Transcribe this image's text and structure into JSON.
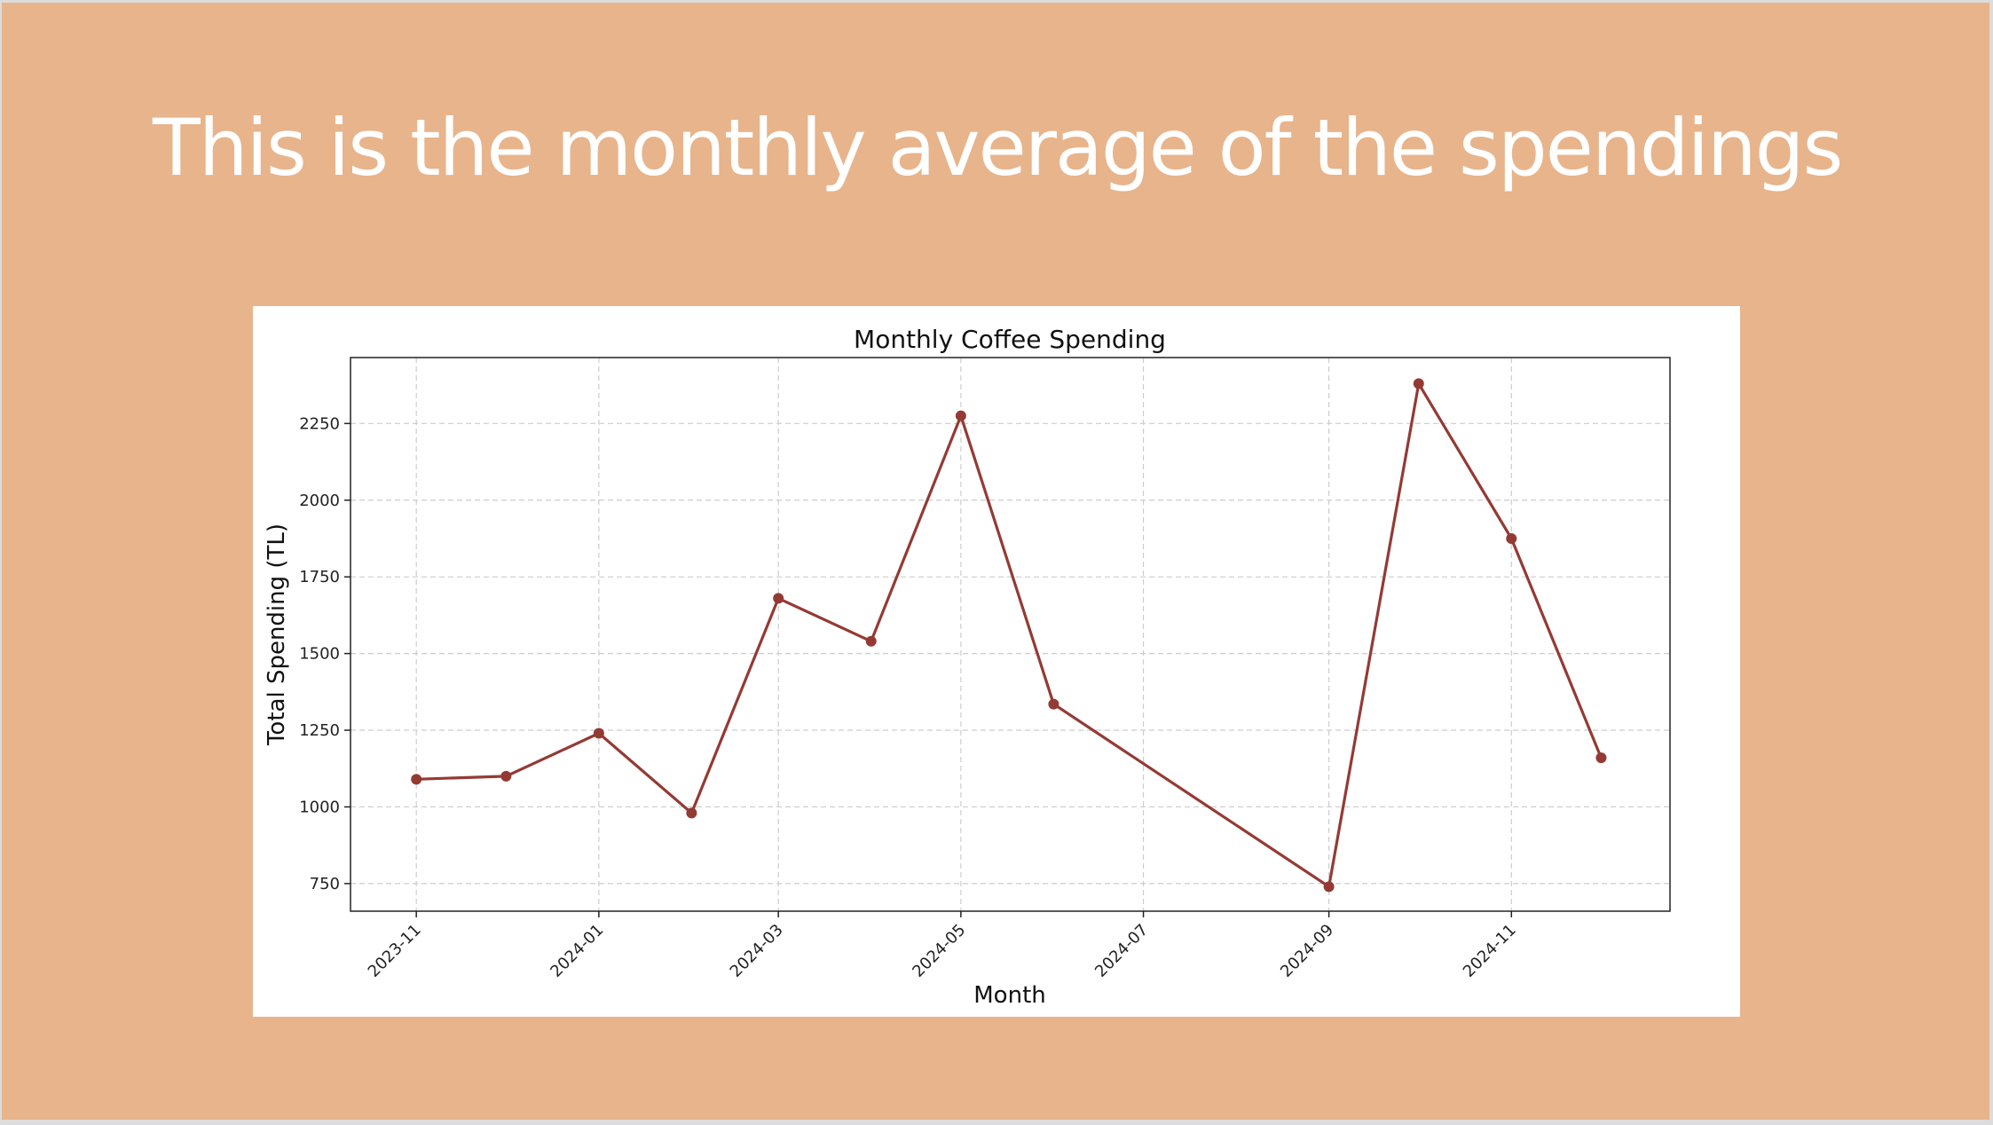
{
  "slide": {
    "title": "This is the monthly average of the spendings",
    "background": "#e8b48b",
    "title_color": "#ffffff"
  },
  "chart_data": {
    "type": "line",
    "title": "Monthly Coffee Spending",
    "xlabel": "Month",
    "ylabel": "Total Spending (TL)",
    "x_tick_labels": [
      "2023-11",
      "2024-01",
      "2024-03",
      "2024-05",
      "2024-07",
      "2024-09",
      "2024-11"
    ],
    "y_ticks": [
      750,
      1000,
      1250,
      1500,
      1750,
      2000,
      2250
    ],
    "xlim": [
      "2023-10-10",
      "2024-12-24"
    ],
    "ylim": [
      660,
      2465
    ],
    "grid": true,
    "series": [
      {
        "color": "#943a34",
        "marker": "circle",
        "points": [
          {
            "x": "2023-11",
            "y": 1090
          },
          {
            "x": "2023-12",
            "y": 1100
          },
          {
            "x": "2024-01",
            "y": 1240
          },
          {
            "x": "2024-02",
            "y": 980
          },
          {
            "x": "2024-03",
            "y": 1680
          },
          {
            "x": "2024-04",
            "y": 1540
          },
          {
            "x": "2024-05",
            "y": 2275
          },
          {
            "x": "2024-06",
            "y": 1335
          },
          {
            "x": "2024-09",
            "y": 740
          },
          {
            "x": "2024-10",
            "y": 2380
          },
          {
            "x": "2024-11",
            "y": 1875
          },
          {
            "x": "2024-12",
            "y": 1160
          }
        ]
      }
    ]
  }
}
